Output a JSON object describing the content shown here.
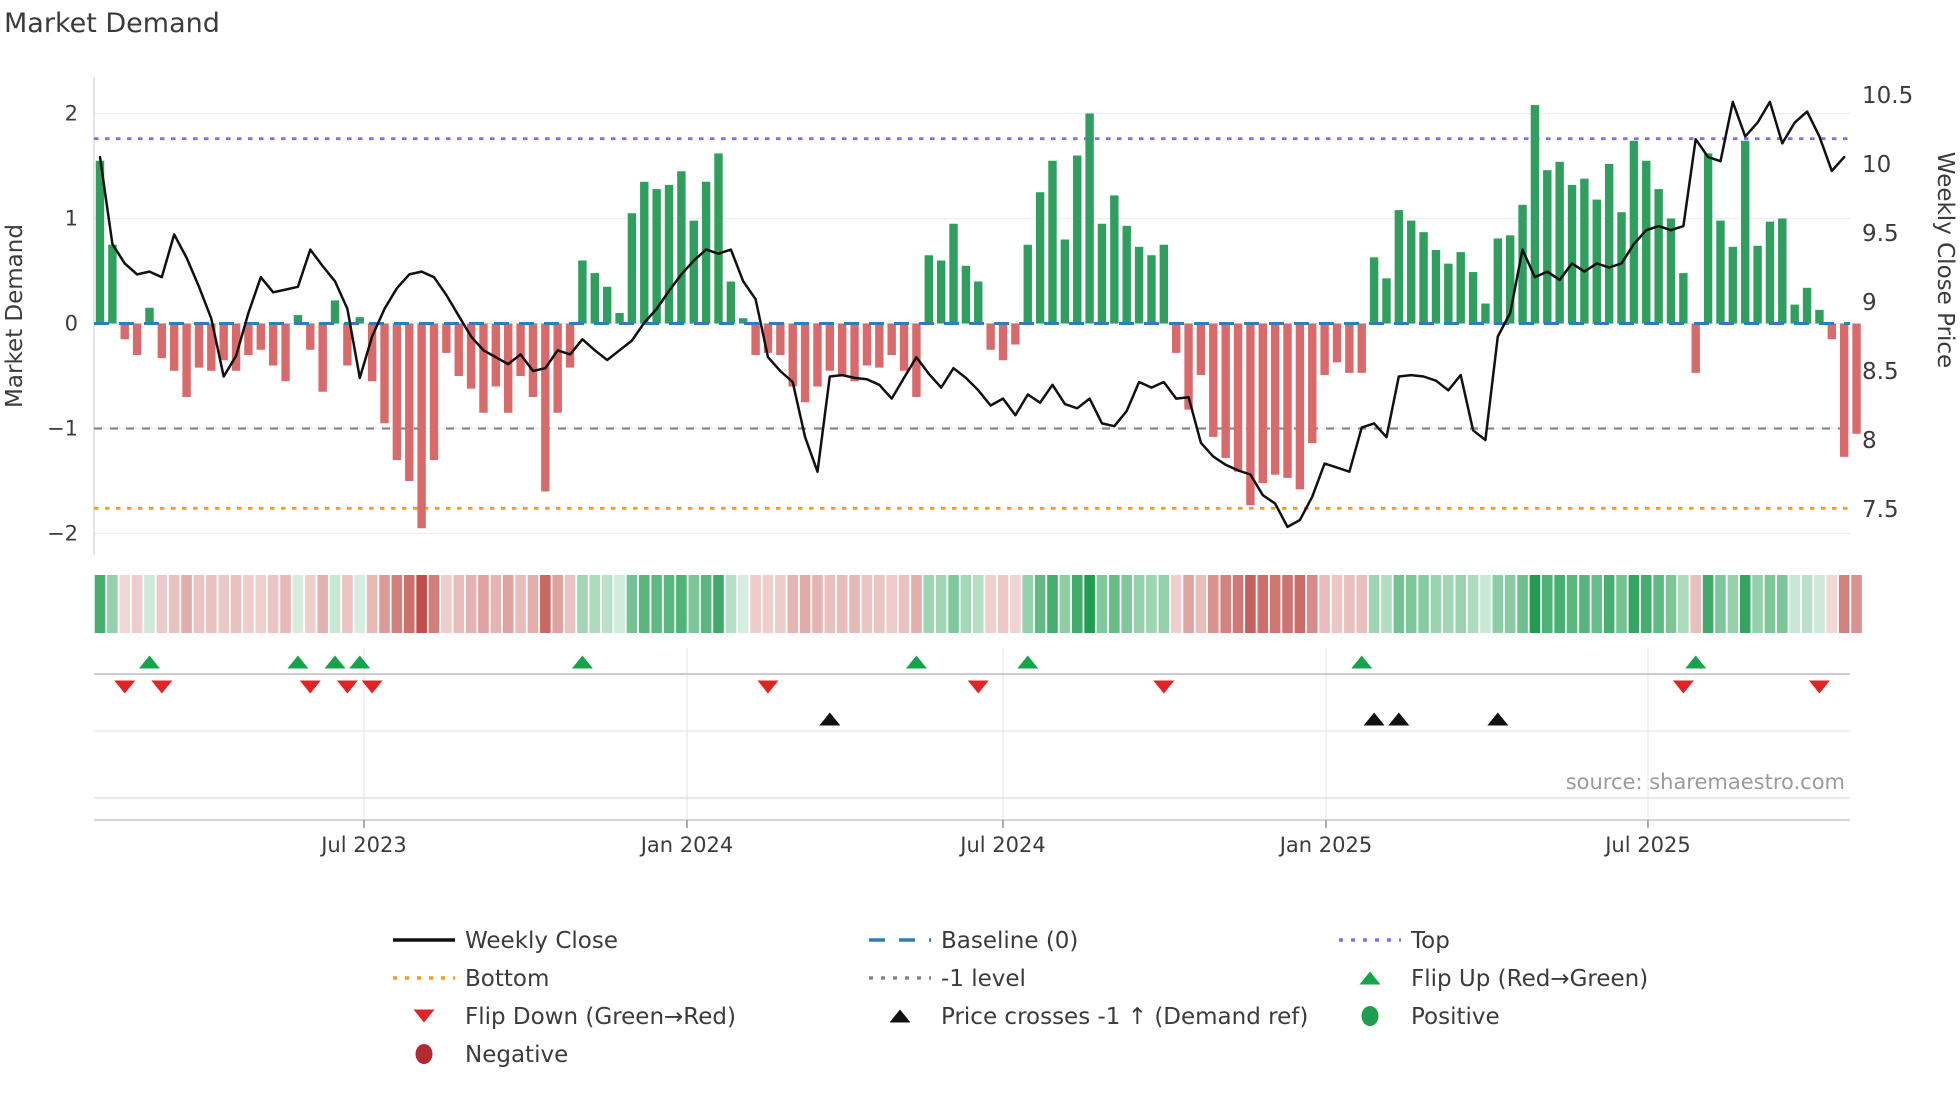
{
  "title": "Market Demand",
  "source": "source: sharemaestro.com",
  "axes": {
    "left_label": "Market Demand",
    "right_label": "Weekly Close Price",
    "left_ticks": [
      "2",
      "1",
      "0",
      "−1",
      "−2"
    ],
    "right_ticks": [
      "10.5",
      "10",
      "9.5",
      "9",
      "8.5",
      "8",
      "7.5"
    ],
    "x_ticks": [
      "Jul 2023",
      "Jan 2024",
      "Jul 2024",
      "Jan 2025",
      "Jul 2025"
    ]
  },
  "colors": {
    "bar_positive": "#2f9e5f",
    "bar_negative": "#d96a6b",
    "heat_green": "#1f9c50",
    "heat_red": "#c04f4b",
    "price_line": "#111111",
    "baseline_blue": "#2e7ebb",
    "top_purple": "#8173e6",
    "bottom_orange": "#f79a28",
    "minus_one_gray": "#888888",
    "flip_up_green": "#17a349",
    "flip_down_red": "#e02424",
    "cross_black": "#111111",
    "positive_dot": "#1e9e4f",
    "negative_dot": "#b02a30",
    "grid": "#ebedf3",
    "axis_line": "#c6c8d0",
    "text": "#3b3b3b",
    "muted": "#9b9b9b"
  },
  "chart_data": {
    "type": "bar+line",
    "x_is_weekly": true,
    "x_range_note": "weekly bars, Feb 2023 - Oct 2025",
    "demand_ylim": [
      -2.2,
      2.35
    ],
    "price_ylim": [
      7.35,
      10.55
    ],
    "top_level": 1.76,
    "bottom_level": -1.76,
    "minus_one_level": -1,
    "baseline": 0,
    "x_tick_weeks": [
      21.34,
      47.45,
      73.0,
      99.11,
      125.14
    ],
    "demand": [
      1.55,
      0.75,
      -0.15,
      -0.3,
      0.15,
      -0.33,
      -0.45,
      -0.7,
      -0.42,
      -0.45,
      -0.35,
      -0.45,
      -0.3,
      -0.25,
      -0.4,
      -0.55,
      0.08,
      -0.25,
      -0.65,
      0.22,
      -0.4,
      0.06,
      -0.55,
      -0.95,
      -1.3,
      -1.5,
      -1.95,
      -1.3,
      -0.28,
      -0.5,
      -0.62,
      -0.85,
      -0.6,
      -0.85,
      -0.5,
      -0.7,
      -1.6,
      -0.85,
      -0.42,
      0.6,
      0.48,
      0.35,
      0.1,
      1.05,
      1.35,
      1.28,
      1.32,
      1.45,
      0.98,
      1.35,
      1.62,
      0.4,
      0.05,
      -0.3,
      -0.28,
      -0.3,
      -0.6,
      -0.75,
      -0.6,
      -0.45,
      -0.5,
      -0.55,
      -0.4,
      -0.42,
      -0.3,
      -0.45,
      -0.7,
      0.65,
      0.6,
      0.95,
      0.55,
      0.4,
      -0.25,
      -0.35,
      -0.2,
      0.75,
      1.25,
      1.55,
      0.8,
      1.6,
      2.0,
      0.95,
      1.22,
      0.93,
      0.73,
      0.65,
      0.75,
      -0.28,
      -0.82,
      -0.49,
      -1.08,
      -1.28,
      -1.41,
      -1.73,
      -1.52,
      -1.44,
      -1.47,
      -1.58,
      -1.14,
      -0.49,
      -0.37,
      -0.47,
      -0.47,
      0.63,
      0.43,
      1.08,
      0.98,
      0.87,
      0.7,
      0.57,
      0.68,
      0.49,
      0.19,
      0.81,
      0.84,
      1.13,
      2.08,
      1.46,
      1.54,
      1.32,
      1.38,
      1.18,
      1.52,
      1.06,
      1.74,
      1.55,
      1.28,
      1.0,
      0.48,
      -0.47,
      1.62,
      0.98,
      0.73,
      1.74,
      0.74,
      0.97,
      1.0,
      0.18,
      0.34,
      0.13,
      -0.15,
      -1.27,
      -1.05
    ],
    "price": [
      10.05,
      9.42,
      9.28,
      9.2,
      9.22,
      9.18,
      9.49,
      9.32,
      9.11,
      8.88,
      8.46,
      8.61,
      8.92,
      9.18,
      9.07,
      9.09,
      9.11,
      9.38,
      9.26,
      9.15,
      8.95,
      8.45,
      8.75,
      8.95,
      9.1,
      9.2,
      9.22,
      9.18,
      9.05,
      8.9,
      8.75,
      8.65,
      8.6,
      8.55,
      8.62,
      8.5,
      8.52,
      8.65,
      8.62,
      8.73,
      8.65,
      8.58,
      8.65,
      8.72,
      8.85,
      8.95,
      9.08,
      9.2,
      9.3,
      9.38,
      9.35,
      9.38,
      9.15,
      9.02,
      8.6,
      8.5,
      8.42,
      8.02,
      7.77,
      8.46,
      8.47,
      8.45,
      8.44,
      8.4,
      8.3,
      8.45,
      8.6,
      8.48,
      8.38,
      8.52,
      8.45,
      8.36,
      8.25,
      8.3,
      8.18,
      8.33,
      8.27,
      8.4,
      8.26,
      8.23,
      8.3,
      8.12,
      8.1,
      8.21,
      8.42,
      8.38,
      8.42,
      8.3,
      8.31,
      7.98,
      7.88,
      7.82,
      7.78,
      7.75,
      7.6,
      7.54,
      7.37,
      7.42,
      7.59,
      7.83,
      7.8,
      7.77,
      8.09,
      8.12,
      8.02,
      8.46,
      8.47,
      8.46,
      8.43,
      8.36,
      8.47,
      8.07,
      8.0,
      8.75,
      8.92,
      9.38,
      9.18,
      9.22,
      9.16,
      9.28,
      9.22,
      9.28,
      9.25,
      9.28,
      9.42,
      9.52,
      9.55,
      9.52,
      9.55,
      10.18,
      10.05,
      10.02,
      10.45,
      10.2,
      10.3,
      10.45,
      10.15,
      10.3,
      10.38,
      10.2,
      9.95,
      10.05
    ],
    "flip_up_weeks": [
      4,
      16,
      19,
      21,
      39,
      66,
      75,
      102,
      129
    ],
    "flip_down_weeks": [
      2,
      5,
      17,
      20,
      22,
      54,
      71,
      86,
      128,
      139
    ],
    "price_cross_weeks": [
      59,
      103,
      105,
      113
    ]
  },
  "legend": {
    "items": [
      {
        "label": "Weekly Close",
        "marker": "line-solid",
        "color": "#111111",
        "row": 0,
        "col": 0
      },
      {
        "label": "Baseline (0)",
        "marker": "line-dashed",
        "color": "#2e7ebb",
        "row": 0,
        "col": 1
      },
      {
        "label": "Top",
        "marker": "line-dotted",
        "color": "#8173e6",
        "row": 0,
        "col": 2
      },
      {
        "label": "Bottom",
        "marker": "line-dotted",
        "color": "#f79a28",
        "row": 1,
        "col": 0
      },
      {
        "label": "-1 level",
        "marker": "line-dotted",
        "color": "#888888",
        "row": 1,
        "col": 1
      },
      {
        "label": "Flip Up (Red→Green)",
        "marker": "tri-up",
        "color": "#17a349",
        "row": 1,
        "col": 2
      },
      {
        "label": "Flip Down (Green→Red)",
        "marker": "tri-down",
        "color": "#e02424",
        "row": 2,
        "col": 0
      },
      {
        "label": "Price crosses -1 ↑ (Demand ref)",
        "marker": "tri-up",
        "color": "#111111",
        "row": 2,
        "col": 1
      },
      {
        "label": "Positive",
        "marker": "circle",
        "color": "#1e9e4f",
        "row": 2,
        "col": 2
      },
      {
        "label": "Negative",
        "marker": "circle",
        "color": "#b02a30",
        "row": 3,
        "col": 0
      }
    ]
  }
}
